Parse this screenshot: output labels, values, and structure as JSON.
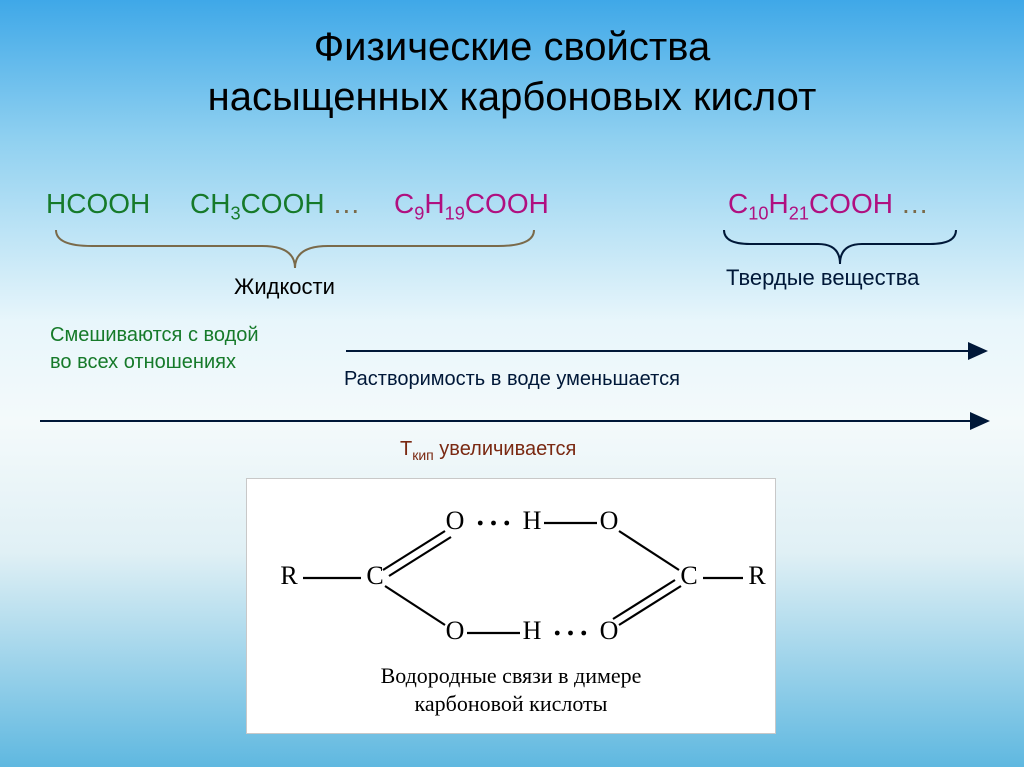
{
  "title_line1": "Физические свойства",
  "title_line2": "насыщенных карбоновых кислот",
  "formulas": {
    "f1": {
      "text": "HCOOH",
      "color": "#167a2a"
    },
    "f2": {
      "pre": "CH",
      "sub1": "3",
      "post": "COOH",
      "color": "#167a2a"
    },
    "f3": {
      "pre": "C",
      "sub1": "9",
      "mid": "H",
      "sub2": "19",
      "post": "COOH",
      "color": "#b01080"
    },
    "f4": {
      "pre": "C",
      "sub1": "10",
      "mid": "H",
      "sub2": "21",
      "post": "COOH",
      "color": "#b01080"
    },
    "ellipsis": "…"
  },
  "brace1_color": "#7a6a4a",
  "brace2_color": "#001838",
  "label_liquids": "Жидкости",
  "label_solids": "Твердые вещества",
  "label_solids_color": "#001838",
  "mix_water_line1": "Смешиваются с водой",
  "mix_water_line2": "во всех отношениях",
  "mix_water_color": "#167a2a",
  "solubility_text": "Растворимость в воде уменьшается",
  "solubility_color": "#001838",
  "tkip_prefix": "Т",
  "tkip_sub": "кип",
  "tkip_rest": " увеличивается",
  "tkip_color": "#7a2912",
  "dimer": {
    "atom_font": "26px",
    "atom_color": "#000000",
    "bond_color": "#000000",
    "R1": "R",
    "R2": "R",
    "C": "C",
    "O": "O",
    "H": "H",
    "caption_line1": "Водородные связи в димере",
    "caption_line2": "карбоновой кислоты"
  }
}
